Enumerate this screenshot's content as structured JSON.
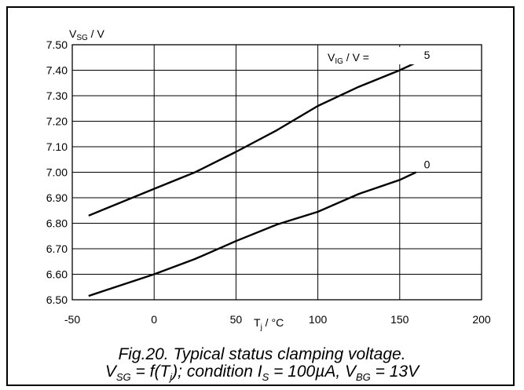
{
  "chart_data": {
    "type": "line",
    "xlabel": {
      "main": "T",
      "sub": "j",
      "unit": " / °C"
    },
    "ylabel": {
      "main": "V",
      "sub": "SG",
      "unit": " / V"
    },
    "xlim": [
      -50,
      200
    ],
    "ylim": [
      6.5,
      7.5
    ],
    "xticks": [
      "-50",
      "0",
      "50",
      "100",
      "150",
      "200"
    ],
    "xtick_values": [
      -50,
      0,
      50,
      100,
      150,
      200
    ],
    "yticks": [
      "7.50",
      "7.40",
      "7.30",
      "7.20",
      "7.10",
      "7.00",
      "6.90",
      "6.80",
      "6.70",
      "6.60",
      "6.50"
    ],
    "ytick_values": [
      7.5,
      7.4,
      7.3,
      7.2,
      7.1,
      7.0,
      6.9,
      6.8,
      6.7,
      6.6,
      6.5
    ],
    "grid": true,
    "legend_title": {
      "main": "V",
      "sub": "IG",
      "unit": " / V ="
    },
    "series": [
      {
        "name": "5",
        "x": [
          -40,
          0,
          25,
          50,
          75,
          100,
          125,
          150,
          160
        ],
        "y": [
          6.83,
          6.935,
          7.0,
          7.08,
          7.165,
          7.26,
          7.335,
          7.4,
          7.43
        ]
      },
      {
        "name": "0",
        "x": [
          -40,
          0,
          25,
          50,
          75,
          100,
          125,
          150,
          160
        ],
        "y": [
          6.515,
          6.6,
          6.66,
          6.73,
          6.795,
          6.845,
          6.915,
          6.97,
          7.0
        ]
      }
    ]
  },
  "caption": {
    "line1": "Fig.20.   Typical status clamping voltage.",
    "line2_parts": [
      "V",
      "SG",
      " = f(T",
      "j",
      "); condition I",
      "S",
      " = 100µA, V",
      "BG",
      " = 13V"
    ]
  }
}
